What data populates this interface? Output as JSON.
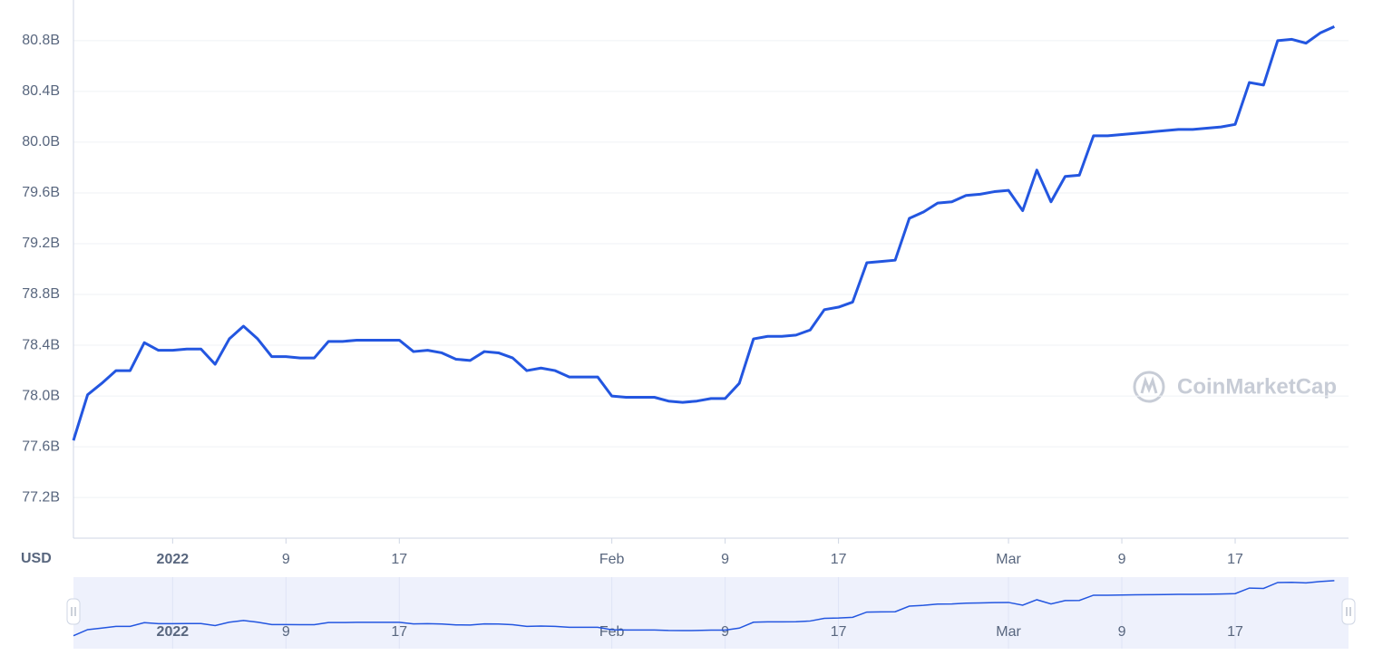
{
  "chart_data": {
    "type": "line",
    "ylabel": "USD",
    "watermark": "CoinMarketCap",
    "x": [
      "2021-12-25",
      "2021-12-26",
      "2021-12-27",
      "2021-12-28",
      "2021-12-29",
      "2021-12-30",
      "2021-12-31",
      "2022-01-01",
      "2022-01-02",
      "2022-01-03",
      "2022-01-04",
      "2022-01-05",
      "2022-01-06",
      "2022-01-07",
      "2022-01-08",
      "2022-01-09",
      "2022-01-10",
      "2022-01-11",
      "2022-01-12",
      "2022-01-13",
      "2022-01-14",
      "2022-01-15",
      "2022-01-16",
      "2022-01-17",
      "2022-01-18",
      "2022-01-19",
      "2022-01-20",
      "2022-01-21",
      "2022-01-22",
      "2022-01-23",
      "2022-01-24",
      "2022-01-25",
      "2022-01-26",
      "2022-01-27",
      "2022-01-28",
      "2022-01-29",
      "2022-01-30",
      "2022-01-31",
      "2022-02-01",
      "2022-02-02",
      "2022-02-03",
      "2022-02-04",
      "2022-02-05",
      "2022-02-06",
      "2022-02-07",
      "2022-02-08",
      "2022-02-09",
      "2022-02-10",
      "2022-02-11",
      "2022-02-12",
      "2022-02-13",
      "2022-02-14",
      "2022-02-15",
      "2022-02-16",
      "2022-02-17",
      "2022-02-18",
      "2022-02-19",
      "2022-02-20",
      "2022-02-21",
      "2022-02-22",
      "2022-02-23",
      "2022-02-24",
      "2022-02-25",
      "2022-02-26",
      "2022-02-27",
      "2022-02-28",
      "2022-03-01",
      "2022-03-02",
      "2022-03-03",
      "2022-03-04",
      "2022-03-05",
      "2022-03-06",
      "2022-03-07",
      "2022-03-08",
      "2022-03-09",
      "2022-03-10",
      "2022-03-11",
      "2022-03-12",
      "2022-03-13",
      "2022-03-14",
      "2022-03-15",
      "2022-03-16",
      "2022-03-17",
      "2022-03-18",
      "2022-03-19",
      "2022-03-20",
      "2022-03-21",
      "2022-03-22",
      "2022-03-23",
      "2022-03-24"
    ],
    "series": [
      {
        "color": "#2356e0",
        "values": [
          77.65,
          78.01,
          78.1,
          78.2,
          78.2,
          78.42,
          78.36,
          78.36,
          78.37,
          78.37,
          78.25,
          78.45,
          78.55,
          78.45,
          78.31,
          78.31,
          78.3,
          78.3,
          78.43,
          78.43,
          78.44,
          78.44,
          78.44,
          78.44,
          78.35,
          78.36,
          78.34,
          78.29,
          78.28,
          78.35,
          78.34,
          78.3,
          78.2,
          78.22,
          78.2,
          78.15,
          78.15,
          78.15,
          78.0,
          77.99,
          77.99,
          77.99,
          77.96,
          77.95,
          77.96,
          77.98,
          77.98,
          78.1,
          78.45,
          78.47,
          78.47,
          78.48,
          78.52,
          78.68,
          78.7,
          78.74,
          79.05,
          79.06,
          79.07,
          79.4,
          79.45,
          79.52,
          79.53,
          79.58,
          79.59,
          79.61,
          79.62,
          79.46,
          79.78,
          79.53,
          79.73,
          79.74,
          80.05,
          80.05,
          80.06,
          80.07,
          80.08,
          80.09,
          80.1,
          80.1,
          80.11,
          80.12,
          80.14,
          80.47,
          80.45,
          80.8,
          80.81,
          80.78,
          80.86,
          80.91
        ]
      }
    ],
    "xlim": [
      "2021-12-25",
      "2022-03-25"
    ],
    "xticks": [
      {
        "value": "2022-01-01",
        "label": "2022"
      },
      {
        "value": "2022-01-09",
        "label": "9"
      },
      {
        "value": "2022-01-17",
        "label": "17"
      },
      {
        "value": "2022-02-01",
        "label": "Feb"
      },
      {
        "value": "2022-02-09",
        "label": "9"
      },
      {
        "value": "2022-02-17",
        "label": "17"
      },
      {
        "value": "2022-03-01",
        "label": "Mar"
      },
      {
        "value": "2022-03-09",
        "label": "9"
      },
      {
        "value": "2022-03-17",
        "label": "17"
      }
    ],
    "ylim": [
      76.88,
      81.12
    ],
    "yticks": [
      {
        "value": 77.2,
        "label": "77.2B"
      },
      {
        "value": 77.6,
        "label": "77.6B"
      },
      {
        "value": 78.0,
        "label": "78.0B"
      },
      {
        "value": 78.4,
        "label": "78.4B"
      },
      {
        "value": 78.8,
        "label": "78.8B"
      },
      {
        "value": 79.2,
        "label": "79.2B"
      },
      {
        "value": 79.6,
        "label": "79.6B"
      },
      {
        "value": 80.0,
        "label": "80.0B"
      },
      {
        "value": 80.4,
        "label": "80.4B"
      },
      {
        "value": 80.8,
        "label": "80.8B"
      }
    ],
    "grid": true
  }
}
